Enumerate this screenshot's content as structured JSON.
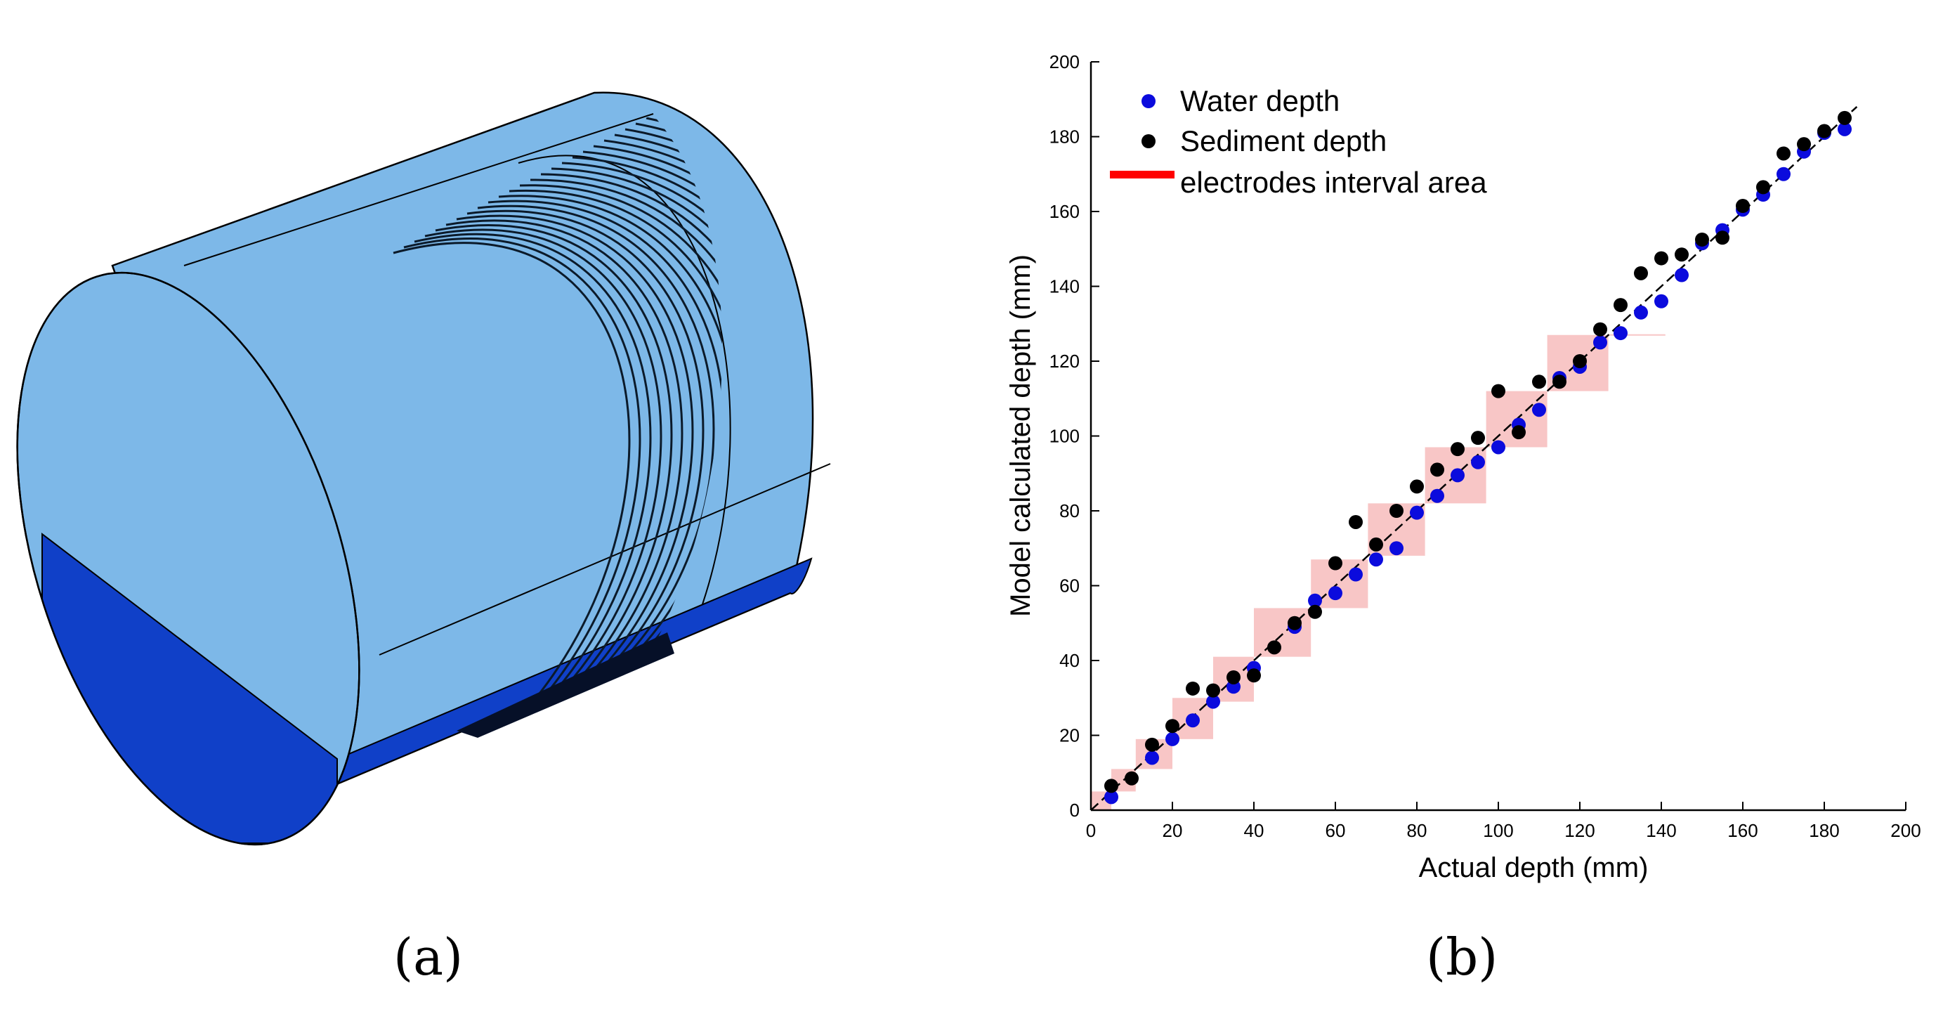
{
  "panels": {
    "a": "(a)",
    "b": "(b)"
  },
  "colors": {
    "cylinder_light": "#7db8e8",
    "cylinder_dark": "#1040c8",
    "water": "#0b0bdd",
    "sediment": "#000000",
    "interval": "#ff0000",
    "interval_fill": "#f6b8b8"
  },
  "chart_data": {
    "type": "scatter",
    "xlabel": "Actual depth (mm)",
    "ylabel": "Model calculated depth (mm)",
    "xlim": [
      0,
      200
    ],
    "ylim": [
      0,
      200
    ],
    "xticks": [
      0,
      20,
      40,
      60,
      80,
      100,
      120,
      140,
      160,
      180,
      200
    ],
    "yticks": [
      0,
      20,
      40,
      60,
      80,
      100,
      120,
      140,
      160,
      180,
      200
    ],
    "legend": [
      "Water depth",
      "Sediment depth",
      "electrodes interval area"
    ],
    "reference_line": {
      "style": "dashed",
      "from": [
        0,
        0
      ],
      "to": [
        188,
        188
      ]
    },
    "series": [
      {
        "name": "Water depth",
        "points": [
          [
            5,
            3.5
          ],
          [
            15,
            14
          ],
          [
            20,
            19
          ],
          [
            25,
            24
          ],
          [
            30,
            29
          ],
          [
            35,
            33
          ],
          [
            40,
            38
          ],
          [
            50,
            49
          ],
          [
            55,
            56
          ],
          [
            60,
            58
          ],
          [
            65,
            63
          ],
          [
            70,
            67
          ],
          [
            75,
            70
          ],
          [
            80,
            79.5
          ],
          [
            85,
            84
          ],
          [
            90,
            89.5
          ],
          [
            95,
            93
          ],
          [
            100,
            97
          ],
          [
            105,
            103
          ],
          [
            110,
            107
          ],
          [
            115,
            115.5
          ],
          [
            120,
            118.5
          ],
          [
            125,
            125
          ],
          [
            130,
            127.5
          ],
          [
            135,
            133
          ],
          [
            140,
            136
          ],
          [
            145,
            143
          ],
          [
            150,
            151.5
          ],
          [
            155,
            155
          ],
          [
            160,
            160.5
          ],
          [
            165,
            164.5
          ],
          [
            170,
            170
          ],
          [
            175,
            176
          ],
          [
            180,
            181
          ],
          [
            185,
            182
          ]
        ]
      },
      {
        "name": "Sediment depth",
        "points": [
          [
            5,
            6.5
          ],
          [
            10,
            8.5
          ],
          [
            15,
            17.5
          ],
          [
            20,
            22.5
          ],
          [
            25,
            32.5
          ],
          [
            30,
            32
          ],
          [
            35,
            35.5
          ],
          [
            40,
            36
          ],
          [
            45,
            43.5
          ],
          [
            50,
            50
          ],
          [
            55,
            53
          ],
          [
            60,
            66
          ],
          [
            65,
            77
          ],
          [
            70,
            71
          ],
          [
            75,
            80
          ],
          [
            80,
            86.5
          ],
          [
            85,
            91
          ],
          [
            90,
            96.5
          ],
          [
            95,
            99.5
          ],
          [
            100,
            112
          ],
          [
            105,
            101
          ],
          [
            110,
            114.5
          ],
          [
            115,
            114.5
          ],
          [
            120,
            120
          ],
          [
            125,
            128.5
          ],
          [
            130,
            135
          ],
          [
            135,
            143.5
          ],
          [
            140,
            147.5
          ],
          [
            145,
            148.5
          ],
          [
            150,
            152.5
          ],
          [
            155,
            153
          ],
          [
            160,
            161.5
          ],
          [
            165,
            166.5
          ],
          [
            170,
            175.5
          ],
          [
            175,
            178
          ],
          [
            180,
            181.5
          ],
          [
            185,
            185
          ]
        ]
      },
      {
        "name": "electrodes interval area",
        "rects": [
          [
            0,
            5,
            0,
            5
          ],
          [
            5,
            11,
            5,
            11
          ],
          [
            11,
            20,
            11,
            19
          ],
          [
            20,
            30,
            19,
            30
          ],
          [
            30,
            40,
            29,
            41
          ],
          [
            40,
            54,
            41,
            54
          ],
          [
            54,
            68,
            54,
            67
          ],
          [
            68,
            82,
            68,
            82
          ],
          [
            82,
            97,
            82,
            97
          ],
          [
            97,
            112,
            97,
            112
          ],
          [
            112,
            127,
            112,
            127
          ],
          [
            127,
            141,
            127,
            127
          ]
        ]
      }
    ]
  }
}
